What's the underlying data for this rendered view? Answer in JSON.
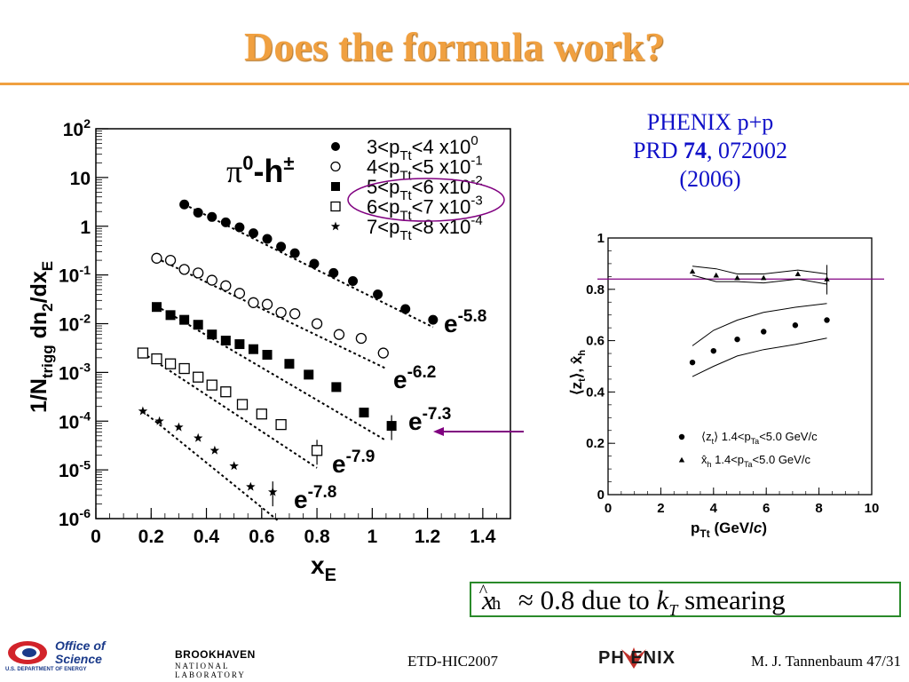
{
  "slide": {
    "title": "Does the formula work?",
    "citation": {
      "line1": "PHENIX p+p",
      "line2_prefix": "PRD ",
      "line2_volume": "74",
      "line2_suffix": ", 072002",
      "line3": "(2006)"
    },
    "conclusion": {
      "x": "x",
      "hat": "^",
      "sub": "h",
      "approx": " ≈ 0.8 due to ",
      "k": "k",
      "k_sub": "T",
      "tail": " smearing"
    },
    "footer": {
      "conference": "ETD-HIC2007",
      "author_page": "M. J. Tannenbaum   47/31"
    },
    "logos": {
      "doe_line1": "Office of",
      "doe_line2": "Science",
      "doe_line3": "U.S. DEPARTMENT OF ENERGY",
      "bnl_line1": "BROOKHAVEN",
      "bnl_line2": "NATIONAL LABORATORY",
      "phenix": "PH ENIX"
    }
  },
  "colors": {
    "title": "#f0a040",
    "citation": "#1010c8",
    "box_border": "#2a8a2a",
    "annotation": "#800080"
  },
  "chart_data": [
    {
      "type": "scatter",
      "yscale": "log",
      "xlabel": "x_E",
      "ylabel": "1/N_trigg dn_2/dx_E",
      "xlim": [
        0,
        1.5
      ],
      "ylim": [
        1e-06,
        100
      ],
      "xticks": [
        "0",
        "0.2",
        "0.4",
        "0.6",
        "0.8",
        "1",
        "1.2",
        "1.4"
      ],
      "yticks": [
        "10^2",
        "10",
        "1",
        "10^-1",
        "10^-2",
        "10^-3",
        "10^-4",
        "10^-5",
        "10^-6"
      ],
      "inner_label": "π0-h±",
      "legend": [
        {
          "label": "3<pTt<4 x10^0",
          "marker": "filled-circle"
        },
        {
          "label": "4<pTt<5 x10^-1",
          "marker": "open-circle"
        },
        {
          "label": "5<pTt<6 x10^-2",
          "marker": "filled-square"
        },
        {
          "label": "6<pTt<7 x10^-3",
          "marker": "open-square"
        },
        {
          "label": "7<pTt<8 x10^-4",
          "marker": "star"
        }
      ],
      "series": [
        {
          "marker": "filled-circle",
          "fit_label": "e^-5.8",
          "fit": [
            [
              0.32,
              2.8
            ],
            [
              1.22,
              0.0085
            ]
          ],
          "x": [
            0.32,
            0.37,
            0.42,
            0.47,
            0.52,
            0.57,
            0.62,
            0.67,
            0.72,
            0.79,
            0.86,
            0.93,
            1.02,
            1.12,
            1.22
          ],
          "y": [
            2.8,
            1.9,
            1.55,
            1.2,
            0.95,
            0.72,
            0.55,
            0.38,
            0.28,
            0.17,
            0.11,
            0.075,
            0.04,
            0.02,
            0.012
          ]
        },
        {
          "marker": "open-circle",
          "fit_label": "e^-6.2",
          "fit": [
            [
              0.22,
              0.22
            ],
            [
              1.05,
              0.0012
            ]
          ],
          "x": [
            0.22,
            0.27,
            0.32,
            0.37,
            0.42,
            0.47,
            0.52,
            0.57,
            0.62,
            0.67,
            0.72,
            0.8,
            0.88,
            0.96,
            1.04
          ],
          "y": [
            0.22,
            0.2,
            0.13,
            0.11,
            0.078,
            0.06,
            0.042,
            0.027,
            0.025,
            0.017,
            0.016,
            0.01,
            0.006,
            0.005,
            0.0025
          ]
        },
        {
          "marker": "filled-square",
          "fit_label": "e^-7.3",
          "fit": [
            [
              0.22,
              0.023
            ],
            [
              1.05,
              4e-05
            ]
          ],
          "x": [
            0.22,
            0.27,
            0.32,
            0.37,
            0.42,
            0.47,
            0.52,
            0.57,
            0.62,
            0.7,
            0.77,
            0.87,
            0.97,
            1.07
          ],
          "y": [
            0.022,
            0.015,
            0.012,
            0.0095,
            0.006,
            0.0045,
            0.0038,
            0.003,
            0.0023,
            0.0015,
            0.0009,
            0.0005,
            0.00015,
            8e-05
          ]
        },
        {
          "marker": "open-square",
          "fit_label": "e^-7.9",
          "fit": [
            [
              0.17,
              0.0025
            ],
            [
              0.8,
              1.1e-05
            ]
          ],
          "x": [
            0.17,
            0.22,
            0.27,
            0.32,
            0.37,
            0.42,
            0.47,
            0.53,
            0.6,
            0.67,
            0.8
          ],
          "y": [
            0.0025,
            0.0019,
            0.0015,
            0.0012,
            0.0008,
            0.00055,
            0.0004,
            0.00022,
            0.00014,
            8.5e-05,
            2.5e-05
          ]
        },
        {
          "marker": "star",
          "fit_label": "e^-7.8",
          "fit": [
            [
              0.17,
              0.00016
            ],
            [
              0.66,
              9e-07
            ]
          ],
          "x": [
            0.17,
            0.23,
            0.3,
            0.37,
            0.43,
            0.5,
            0.56,
            0.64
          ],
          "y": [
            0.00016,
            0.0001,
            7.5e-05,
            4.5e-05,
            2.5e-05,
            1.2e-05,
            4.5e-06,
            3.5e-06
          ]
        }
      ]
    },
    {
      "type": "scatter",
      "xlabel": "pTt (GeV/c)",
      "ylabel": "⟨zt⟩, x̂h",
      "xlim": [
        0,
        10
      ],
      "ylim": [
        0,
        1
      ],
      "xticks": [
        "0",
        "2",
        "4",
        "6",
        "8",
        "10"
      ],
      "yticks": [
        "0",
        "0.2",
        "0.4",
        "0.6",
        "0.8",
        "1"
      ],
      "reference_line": 0.84,
      "legend": [
        {
          "label": "⟨zt⟩ 1.4<pTa<5.0 GeV/c",
          "marker": "filled-circle"
        },
        {
          "label": "x̂h  1.4<pTa<5.0 GeV/c",
          "marker": "triangle"
        }
      ],
      "series": [
        {
          "name": "zt",
          "marker": "filled-circle",
          "x": [
            3.2,
            4.0,
            4.9,
            5.9,
            7.1,
            8.3
          ],
          "y": [
            0.515,
            0.56,
            0.605,
            0.635,
            0.66,
            0.68
          ],
          "band_upper": [
            0.58,
            0.64,
            0.68,
            0.71,
            0.73,
            0.745
          ],
          "band_lower": [
            0.46,
            0.5,
            0.54,
            0.565,
            0.585,
            0.61
          ]
        },
        {
          "name": "xh",
          "marker": "triangle",
          "x": [
            3.2,
            4.1,
            4.9,
            5.9,
            7.2,
            8.3
          ],
          "y": [
            0.87,
            0.855,
            0.845,
            0.845,
            0.86,
            0.84
          ],
          "band_upper": [
            0.89,
            0.88,
            0.86,
            0.86,
            0.875,
            0.86
          ],
          "band_lower": [
            0.855,
            0.83,
            0.83,
            0.825,
            0.84,
            0.82
          ]
        }
      ]
    }
  ]
}
